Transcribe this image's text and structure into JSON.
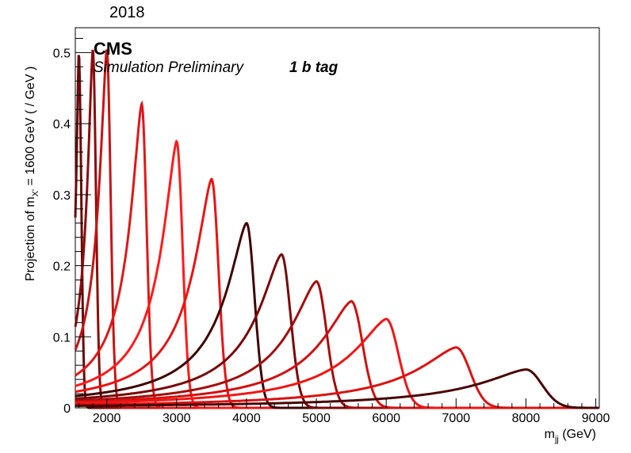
{
  "header": {
    "year": "2018"
  },
  "labels": {
    "cms": "CMS",
    "simulation": "Simulation Preliminary",
    "tag": "1 b tag"
  },
  "chart_data": {
    "type": "line",
    "title": "",
    "xlabel_main": "m",
    "xlabel_sub": "jj",
    "xlabel_unit": " (GeV)",
    "ylabel_main": "Projection of m",
    "ylabel_sub": "X'",
    "ylabel_rest": " = 1600 GeV ( / GeV )",
    "xlim": [
      1550,
      9050
    ],
    "ylim": [
      0,
      0.535
    ],
    "x_ticks": [
      2000,
      3000,
      4000,
      5000,
      6000,
      7000,
      8000,
      9000
    ],
    "y_ticks": [
      0,
      0.1,
      0.2,
      0.3,
      0.4,
      0.5
    ],
    "y_tick_labels": [
      "0",
      "0.1",
      "0.2",
      "0.3",
      "0.4",
      "0.5"
    ],
    "series": [
      {
        "peak_x": 1600,
        "peak_y": 0.5,
        "left_width": 55,
        "right_width": 35,
        "color": "#6b0a0a"
      },
      {
        "peak_x": 1800,
        "peak_y": 0.505,
        "left_width": 110,
        "right_width": 45,
        "color": "#8c0c0c"
      },
      {
        "peak_x": 2000,
        "peak_y": 0.505,
        "left_width": 150,
        "right_width": 55,
        "color": "#c81414"
      },
      {
        "peak_x": 2500,
        "peak_y": 0.428,
        "left_width": 230,
        "right_width": 70,
        "color": "#e01818"
      },
      {
        "peak_x": 3000,
        "peak_y": 0.375,
        "left_width": 290,
        "right_width": 85,
        "color": "#ff1a1a"
      },
      {
        "peak_x": 3500,
        "peak_y": 0.322,
        "left_width": 350,
        "right_width": 100,
        "color": "#e81414"
      },
      {
        "peak_x": 4000,
        "peak_y": 0.26,
        "left_width": 410,
        "right_width": 115,
        "color": "#3f0505"
      },
      {
        "peak_x": 4500,
        "peak_y": 0.216,
        "left_width": 470,
        "right_width": 130,
        "color": "#7a0909"
      },
      {
        "peak_x": 5000,
        "peak_y": 0.178,
        "left_width": 530,
        "right_width": 145,
        "color": "#a50d0d"
      },
      {
        "peak_x": 5500,
        "peak_y": 0.15,
        "left_width": 600,
        "right_width": 160,
        "color": "#d21010"
      },
      {
        "peak_x": 6000,
        "peak_y": 0.125,
        "left_width": 670,
        "right_width": 175,
        "color": "#f21515"
      },
      {
        "peak_x": 7000,
        "peak_y": 0.085,
        "left_width": 800,
        "right_width": 200,
        "color": "#dc1212"
      },
      {
        "peak_x": 8000,
        "peak_y": 0.054,
        "left_width": 950,
        "right_width": 230,
        "color": "#4a0606"
      }
    ]
  }
}
